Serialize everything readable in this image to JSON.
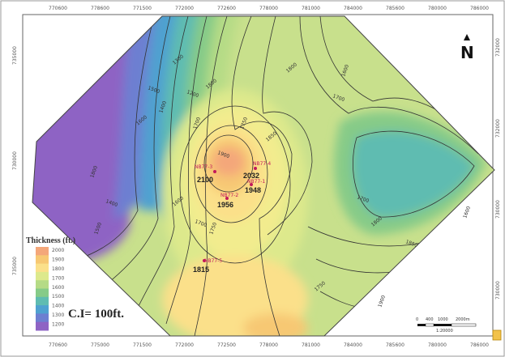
{
  "map": {
    "north_label": "N",
    "legend_title": "Thickness (ft.)",
    "contour_interval": "C.I= 100ft.",
    "top_ticks": [
      "770600",
      "778600",
      "771500",
      "772000",
      "772600",
      "778000",
      "781000",
      "784000",
      "785600",
      "780000",
      "786000"
    ],
    "bottom_ticks": [
      "770600",
      "775000",
      "771500",
      "772000",
      "772500",
      "778000",
      "781000",
      "784000",
      "785600",
      "780000",
      "786000"
    ],
    "left_ticks": [
      "735000",
      "730000",
      "735000"
    ],
    "right_ticks": [
      "732000",
      "732000",
      "730000",
      "730000"
    ],
    "legend_ticks": [
      "2000",
      "1900",
      "1800",
      "1700",
      "1600",
      "1500",
      "1400",
      "1300",
      "1200"
    ],
    "legend_colors": [
      "#f4a77a",
      "#f7c873",
      "#fbe08a",
      "#dde98c",
      "#b5db86",
      "#86cb88",
      "#5fbcb1",
      "#4fa1d0",
      "#6d7fd1",
      "#8e63c4"
    ],
    "scale_labels": [
      "0",
      "400",
      "1000",
      "2000m"
    ],
    "scale_ratio": "1:20000",
    "contour_labels": [
      "1800",
      "1600",
      "1500",
      "1400",
      "1300",
      "1200",
      "1700",
      "1800",
      "1900",
      "1750",
      "1850",
      "1400",
      "1500",
      "1600",
      "1700",
      "1750",
      "1800",
      "1700",
      "1600",
      "1800",
      "1850",
      "1900",
      "1750",
      "1700",
      "1600"
    ],
    "wells": [
      {
        "id": "NB77-3",
        "value": "2100"
      },
      {
        "id": "NB77-4",
        "value": "2032"
      },
      {
        "id": "NB77-1",
        "value": "1948"
      },
      {
        "id": "NB77-2",
        "value": "1956"
      },
      {
        "id": "NB77-5",
        "value": "1815"
      }
    ]
  }
}
